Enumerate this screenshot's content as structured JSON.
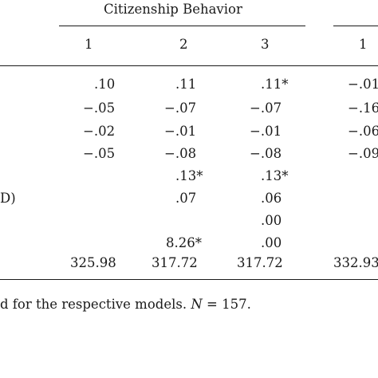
{
  "table": {
    "group_header": "Citizenship Behavior",
    "columns": [
      "1",
      "2",
      "3",
      "1"
    ],
    "row_label_fragments": {
      "row6": "D)"
    },
    "rows": [
      [
        ".10",
        ".11",
        ".11*",
        "−.01"
      ],
      [
        "−.05",
        "−.07",
        "−.07",
        "−.16"
      ],
      [
        "−.02",
        "−.01",
        "−.01",
        "−.06"
      ],
      [
        "−.05",
        "−.08",
        "−.08",
        "−.09"
      ],
      [
        "",
        ".13*",
        ".13*",
        ""
      ],
      [
        "",
        ".07",
        ".06",
        ""
      ],
      [
        "",
        "",
        ".00",
        ""
      ],
      [
        "",
        "8.26*",
        ".00",
        ""
      ],
      [
        "325.98",
        "317.72",
        "317.72",
        "332.93"
      ]
    ]
  },
  "footnote": {
    "prefix": "d for the respective models. ",
    "n_symbol": "N",
    "n_value": " = 157."
  }
}
